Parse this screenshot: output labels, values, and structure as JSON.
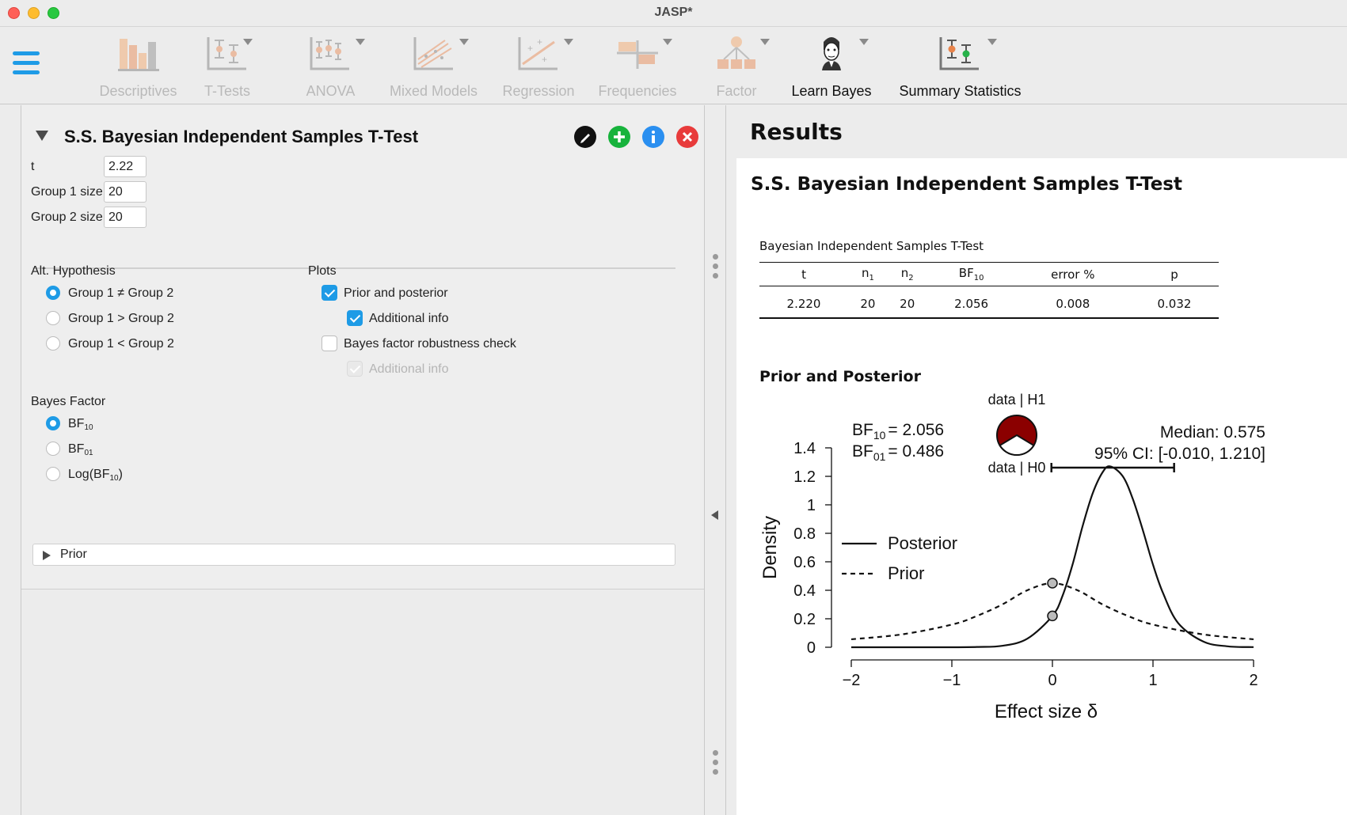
{
  "window": {
    "title": "JASP*"
  },
  "ribbon": {
    "modules": [
      {
        "label": "Descriptives",
        "enabled": false
      },
      {
        "label": "T-Tests",
        "enabled": false
      },
      {
        "label": "ANOVA",
        "enabled": false
      },
      {
        "label": "Mixed Models",
        "enabled": false
      },
      {
        "label": "Regression",
        "enabled": false
      },
      {
        "label": "Frequencies",
        "enabled": false
      },
      {
        "label": "Factor",
        "enabled": false
      },
      {
        "label": "Learn Bayes",
        "enabled": true
      },
      {
        "label": "Summary Statistics",
        "enabled": true
      }
    ]
  },
  "analysis": {
    "title": "S.S. Bayesian Independent Samples T-Test",
    "fields": [
      {
        "label": "t",
        "value": "2.22"
      },
      {
        "label": "Group 1 size",
        "value": "20"
      },
      {
        "label": "Group 2 size",
        "value": "20"
      }
    ],
    "alt_hypothesis": {
      "heading": "Alt. Hypothesis",
      "options": [
        {
          "label": "Group 1 ≠ Group 2",
          "selected": true
        },
        {
          "label": "Group 1 > Group 2",
          "selected": false
        },
        {
          "label": "Group 1 < Group 2",
          "selected": false
        }
      ]
    },
    "plots": {
      "heading": "Plots",
      "prior_posterior": "Prior and posterior",
      "prior_posterior_additional": "Additional info",
      "robustness": "Bayes factor robustness check",
      "robustness_additional": "Additional info"
    },
    "bayes_factor": {
      "heading": "Bayes Factor",
      "options": [
        {
          "main": "BF",
          "sub": "10",
          "suffix": "",
          "selected": true
        },
        {
          "main": "BF",
          "sub": "01",
          "suffix": "",
          "selected": false
        },
        {
          "main": "Log(BF",
          "sub": "10",
          "suffix": ")",
          "selected": false
        }
      ]
    },
    "prior_section": "Prior"
  },
  "results": {
    "header": "Results",
    "title": "S.S. Bayesian Independent Samples T-Test",
    "table": {
      "title": "Bayesian Independent Samples T-Test",
      "headers": [
        {
          "main": "t",
          "sub": ""
        },
        {
          "main": "n",
          "sub": "1"
        },
        {
          "main": "n",
          "sub": "2"
        },
        {
          "main": "BF",
          "sub": "10"
        },
        {
          "main": "error %",
          "sub": ""
        },
        {
          "main": "p",
          "sub": ""
        }
      ],
      "rows": [
        [
          "2.220",
          "20",
          "20",
          "2.056",
          "0.008",
          "0.032"
        ]
      ]
    },
    "plot_title": "Prior and Posterior"
  },
  "chart_data": {
    "type": "line",
    "title": "",
    "xlabel": "Effect size δ",
    "ylabel": "Density",
    "xlim": [
      -2,
      2
    ],
    "ylim": [
      0,
      1.4
    ],
    "xticks": [
      "−2",
      "−1",
      "0",
      "1",
      "2"
    ],
    "yticks": [
      "0",
      "0.2",
      "0.4",
      "0.6",
      "0.8",
      "1",
      "1.2",
      "1.4"
    ],
    "annotations": {
      "bf10_label": "BF",
      "bf10_sub": "10",
      "bf10_value": "= 2.056",
      "bf01_label": "BF",
      "bf01_sub": "01",
      "bf01_value": "= 0.486",
      "pizza_top": "data | H1",
      "pizza_bottom": "data | H0",
      "pizza_h1_proportion": 0.673,
      "median": "Median: 0.575",
      "ci": "95% CI: [-0.010, 1.210]",
      "ci_interval": [
        -0.01,
        1.21
      ]
    },
    "series": [
      {
        "name": "Posterior",
        "style": "solid",
        "x": [
          -2,
          -1.5,
          -1,
          -0.75,
          -0.5,
          -0.25,
          0,
          0.1,
          0.2,
          0.3,
          0.4,
          0.5,
          0.575,
          0.7,
          0.8,
          0.9,
          1.0,
          1.1,
          1.25,
          1.5,
          1.75,
          2
        ],
        "y": [
          0,
          0,
          0,
          0.002,
          0.01,
          0.06,
          0.22,
          0.36,
          0.58,
          0.85,
          1.08,
          1.23,
          1.27,
          1.2,
          1.04,
          0.82,
          0.58,
          0.38,
          0.17,
          0.04,
          0.006,
          0.001
        ]
      },
      {
        "name": "Prior",
        "style": "dashed",
        "x": [
          -2,
          -1.5,
          -1,
          -0.75,
          -0.5,
          -0.25,
          0,
          0.25,
          0.5,
          0.75,
          1,
          1.5,
          2
        ],
        "y": [
          0.056,
          0.09,
          0.159,
          0.22,
          0.3,
          0.4,
          0.45,
          0.4,
          0.3,
          0.22,
          0.159,
          0.09,
          0.056
        ]
      }
    ],
    "points": [
      {
        "x": 0,
        "y": 0.45
      },
      {
        "x": 0,
        "y": 0.22
      }
    ],
    "colors": {
      "pizza_h1": "#8b0000",
      "pizza_h0": "#ffffff"
    }
  },
  "colors": {
    "accent": "#1e9be6"
  }
}
